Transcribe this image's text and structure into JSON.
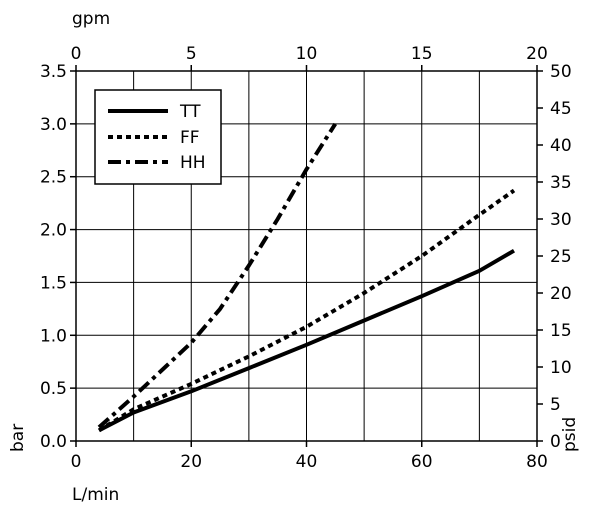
{
  "chart_data": {
    "type": "line",
    "title": "",
    "xlabel": "L/min",
    "ylabel": "bar",
    "x_top_label": "gpm",
    "y_right_label": "psid",
    "xlim": [
      0,
      80
    ],
    "ylim": [
      0,
      3.5
    ],
    "x_top_lim": [
      0,
      20
    ],
    "y_right_lim": [
      0,
      50
    ],
    "x_ticks": [
      "0",
      "20",
      "40",
      "60",
      "80"
    ],
    "y_ticks": [
      "0.0",
      "0.5",
      "1.0",
      "1.5",
      "2.0",
      "2.5",
      "3.0",
      "3.5"
    ],
    "x_top_ticks": [
      "0",
      "5",
      "10",
      "15",
      "20"
    ],
    "y_right_ticks": [
      "0",
      "5",
      "10",
      "15",
      "20",
      "25",
      "30",
      "35",
      "40",
      "45",
      "50"
    ],
    "grid": true,
    "legend_position": "top-left",
    "series": [
      {
        "name": "TT",
        "style": "solid",
        "x": [
          4,
          10,
          20,
          30,
          40,
          50,
          60,
          70,
          76
        ],
        "y": [
          0.1,
          0.27,
          0.47,
          0.69,
          0.91,
          1.14,
          1.37,
          1.61,
          1.8
        ]
      },
      {
        "name": "FF",
        "style": "dotted",
        "x": [
          4,
          10,
          20,
          30,
          40,
          50,
          60,
          70,
          76
        ],
        "y": [
          0.1,
          0.3,
          0.54,
          0.8,
          1.08,
          1.4,
          1.75,
          2.14,
          2.37
        ]
      },
      {
        "name": "HH",
        "style": "dashdot",
        "x": [
          4,
          10,
          20,
          25,
          30,
          35,
          40,
          45
        ],
        "y": [
          0.13,
          0.42,
          0.93,
          1.25,
          1.66,
          2.1,
          2.57,
          3.0
        ]
      }
    ]
  }
}
